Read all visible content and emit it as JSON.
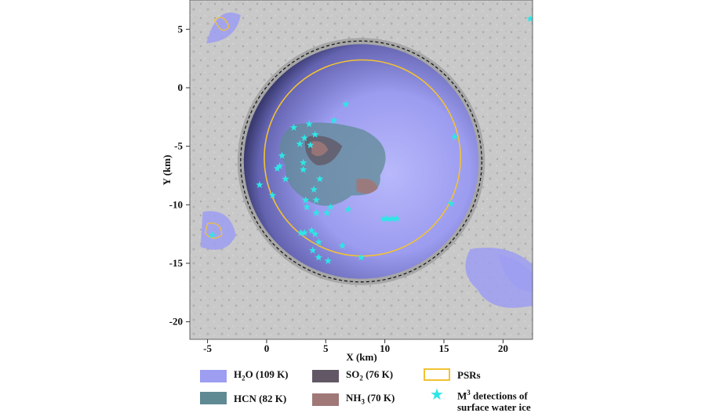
{
  "chart_data": {
    "type": "scatter",
    "xlabel": "X (km)",
    "ylabel": "Y (km)",
    "xlim": [
      -6.5,
      22.5
    ],
    "ylim": [
      -21.5,
      7.5
    ],
    "xticks": [
      -5,
      0,
      5,
      10,
      15,
      20
    ],
    "yticks": [
      5,
      0,
      -5,
      -10,
      -15,
      -20
    ],
    "xtick_labels": [
      "-5",
      "0",
      "5",
      "10",
      "15",
      "20"
    ],
    "ytick_labels": [
      "5",
      "0",
      "-5",
      "-10",
      "-15",
      "-20"
    ],
    "crater": {
      "center_x": 8.0,
      "center_y": -6.3,
      "radius_km": 10.2
    },
    "psr_main": {
      "center_x": 8.1,
      "center_y": -6.0,
      "radius_km": 8.3
    },
    "legend": [
      {
        "key": "h2o",
        "label_main": "H",
        "label_sub": "2",
        "label_rest": "O (109 K)",
        "color": "#9d9df2"
      },
      {
        "key": "so2",
        "label_main": "SO",
        "label_sub": "2",
        "label_rest": " (76 K)",
        "color": "#625865"
      },
      {
        "key": "psr",
        "label_main": "PSRs",
        "label_sub": "",
        "label_rest": "",
        "color": "#f2c233"
      },
      {
        "key": "hcn",
        "label_main": "HCN (82 K)",
        "label_sub": "",
        "label_rest": "",
        "color": "#5f8a94"
      },
      {
        "key": "nh3",
        "label_main": "NH",
        "label_sub": "3",
        "label_rest": " (70 K)",
        "color": "#a07878"
      },
      {
        "key": "m3",
        "label_main": "M",
        "label_sup": "3",
        "label_rest": " detections of",
        "label_line2": "surface water ice",
        "color": "#2ee6e6"
      }
    ],
    "series": [
      {
        "name": "M3 detections of surface water ice",
        "marker": "star",
        "color": "#2ee6e6",
        "points": [
          [
            6.7,
            -1.4
          ],
          [
            5.7,
            -2.8
          ],
          [
            2.3,
            -3.4
          ],
          [
            3.6,
            -3.1
          ],
          [
            3.2,
            -4.3
          ],
          [
            4.1,
            -4.0
          ],
          [
            2.8,
            -4.8
          ],
          [
            3.7,
            -4.9
          ],
          [
            1.3,
            -5.8
          ],
          [
            3.1,
            -6.4
          ],
          [
            1.1,
            -6.7
          ],
          [
            0.9,
            -6.9
          ],
          [
            3.1,
            -7.0
          ],
          [
            1.6,
            -7.8
          ],
          [
            4.5,
            -7.8
          ],
          [
            -0.6,
            -8.3
          ],
          [
            4.0,
            -8.7
          ],
          [
            0.5,
            -9.2
          ],
          [
            3.3,
            -9.6
          ],
          [
            4.2,
            -9.6
          ],
          [
            3.4,
            -10.2
          ],
          [
            5.4,
            -10.2
          ],
          [
            6.9,
            -10.4
          ],
          [
            4.2,
            -10.7
          ],
          [
            5.1,
            -10.7
          ],
          [
            9.9,
            -11.2
          ],
          [
            10.1,
            -11.2
          ],
          [
            10.4,
            -11.2
          ],
          [
            10.7,
            -11.2
          ],
          [
            11.0,
            -11.2
          ],
          [
            15.6,
            -9.9
          ],
          [
            15.9,
            -4.2
          ],
          [
            2.9,
            -12.4
          ],
          [
            3.2,
            -12.4
          ],
          [
            3.8,
            -12.2
          ],
          [
            4.1,
            -12.5
          ],
          [
            4.4,
            -13.2
          ],
          [
            3.9,
            -13.9
          ],
          [
            6.4,
            -13.5
          ],
          [
            8.0,
            -14.5
          ],
          [
            4.4,
            -14.5
          ],
          [
            5.2,
            -14.8
          ],
          [
            -4.6,
            -12.6
          ],
          [
            22.3,
            5.9
          ]
        ]
      }
    ]
  }
}
